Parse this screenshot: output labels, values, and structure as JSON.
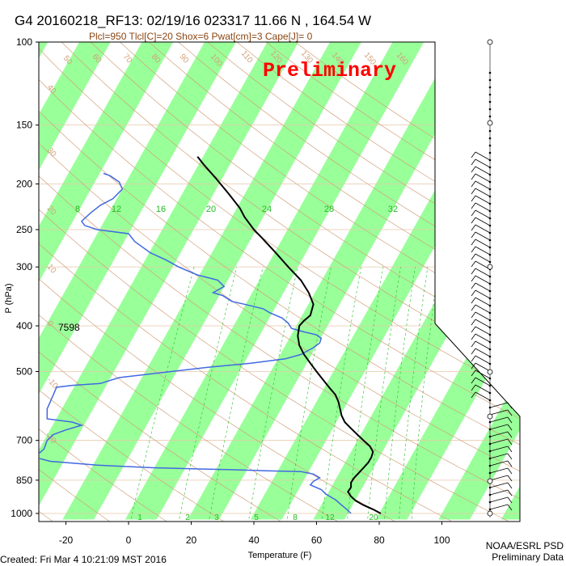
{
  "header": {
    "title": "G4 20160218_RF13: 02/19/16 023317  11.66 N , 164.54 W",
    "subtitle": "Plcl=950 Tlcl[C]=20 Shox=6 Pwat[cm]=3 Cape[J]= 0",
    "preliminary": "Preliminary"
  },
  "footer": {
    "created": "Created: Fri Mar  4 10:21:09 MST 2016",
    "credit_line1": "NOAA/ESRL PSD",
    "credit_line2": "Preliminary Data"
  },
  "colors": {
    "temperature": "#000000",
    "dewpoint": "#4169e1",
    "green_band": "#99ff99",
    "dry_adiabat": "#d2a07a",
    "mixing_ratio": "#22bb22",
    "isobar": "#e6c8a8"
  },
  "chart_data": {
    "type": "skew-t",
    "xlabel": "Temperature (F)",
    "ylabel": "P (hPa)",
    "xlim": [
      -28,
      122
    ],
    "ylim": [
      1030,
      100
    ],
    "x_ticks": [
      "-20",
      "0",
      "20",
      "40",
      "60",
      "80",
      "100"
    ],
    "y_ticks": [
      "100",
      "150",
      "200",
      "250",
      "300",
      "400",
      "500",
      "700",
      "850",
      "1000"
    ],
    "annotation": "7598",
    "mixing_ratio_labels_top": [
      "8",
      "12",
      "16",
      "20",
      "24",
      "28",
      "32"
    ],
    "mixing_ratio_labels_bottom": [
      "1",
      "2",
      "3",
      "5",
      "8",
      "12",
      "20"
    ],
    "dry_adiabat_labels": [
      "50",
      "60",
      "70",
      "80",
      "90",
      "100",
      "110",
      "120",
      "130",
      "140",
      "150",
      "160",
      "40",
      "30",
      "20",
      "10",
      "0",
      "-10",
      "-20"
    ],
    "theta_labels": [
      "30",
      "20",
      "10",
      "0",
      "10",
      "20"
    ],
    "series": [
      {
        "name": "temperature",
        "points": [
          [
            1000,
            80.5
          ],
          [
            980,
            78
          ],
          [
            960,
            75
          ],
          [
            940,
            72.5
          ],
          [
            920,
            71
          ],
          [
            900,
            70
          ],
          [
            880,
            71
          ],
          [
            860,
            71
          ],
          [
            840,
            72
          ],
          [
            820,
            73.5
          ],
          [
            800,
            75
          ],
          [
            780,
            76.5
          ],
          [
            760,
            77.5
          ],
          [
            740,
            78
          ],
          [
            720,
            77
          ],
          [
            700,
            75
          ],
          [
            680,
            73
          ],
          [
            660,
            71
          ],
          [
            640,
            69
          ],
          [
            620,
            68
          ],
          [
            600,
            67.5
          ],
          [
            580,
            67
          ],
          [
            560,
            66
          ],
          [
            540,
            64
          ],
          [
            520,
            62
          ],
          [
            500,
            60
          ],
          [
            480,
            58
          ],
          [
            460,
            56
          ],
          [
            440,
            54.5
          ],
          [
            420,
            54
          ],
          [
            400,
            54.5
          ],
          [
            390,
            56
          ],
          [
            380,
            58
          ],
          [
            360,
            59
          ],
          [
            340,
            57.5
          ],
          [
            320,
            55
          ],
          [
            300,
            51
          ],
          [
            280,
            47
          ],
          [
            260,
            42.5
          ],
          [
            250,
            40
          ],
          [
            235,
            37
          ],
          [
            225,
            35.5
          ],
          [
            210,
            32
          ],
          [
            195,
            28
          ],
          [
            182,
            24
          ],
          [
            175,
            22
          ]
        ]
      },
      {
        "name": "dewpoint",
        "points": [
          [
            1000,
            71
          ],
          [
            985,
            70
          ],
          [
            960,
            68
          ],
          [
            935,
            66
          ],
          [
            910,
            63
          ],
          [
            890,
            61.5
          ],
          [
            870,
            58
          ],
          [
            855,
            59
          ],
          [
            840,
            61
          ],
          [
            825,
            59
          ],
          [
            815,
            55
          ],
          [
            812,
            44
          ],
          [
            808,
            34
          ],
          [
            805,
            24
          ],
          [
            800,
            8
          ],
          [
            790,
            -10
          ],
          [
            775,
            -25
          ],
          [
            760,
            -30
          ],
          [
            750,
            -29
          ],
          [
            730,
            -27
          ],
          [
            700,
            -26
          ],
          [
            680,
            -24
          ],
          [
            665,
            -20
          ],
          [
            650,
            -15
          ],
          [
            640,
            -18
          ],
          [
            630,
            -26
          ],
          [
            600,
            -26
          ],
          [
            560,
            -24
          ],
          [
            540,
            -23
          ],
          [
            535,
            -18
          ],
          [
            530,
            -9
          ],
          [
            515,
            -3
          ],
          [
            505,
            8
          ],
          [
            490,
            25
          ],
          [
            480,
            39
          ],
          [
            470,
            50
          ],
          [
            460,
            55
          ],
          [
            445,
            59
          ],
          [
            435,
            61
          ],
          [
            425,
            61.5
          ],
          [
            418,
            60
          ],
          [
            412,
            56
          ],
          [
            405,
            52
          ],
          [
            395,
            51
          ],
          [
            385,
            49
          ],
          [
            375,
            45
          ],
          [
            368,
            43
          ],
          [
            360,
            37
          ],
          [
            355,
            33
          ],
          [
            345,
            30
          ],
          [
            340,
            27
          ],
          [
            330,
            30.5
          ],
          [
            320,
            28.5
          ],
          [
            312,
            22
          ],
          [
            300,
            16
          ],
          [
            290,
            12
          ],
          [
            280,
            7
          ],
          [
            265,
            2
          ],
          [
            255,
            0
          ],
          [
            250,
            -10
          ],
          [
            245,
            -14
          ],
          [
            240,
            -15
          ],
          [
            230,
            -12
          ],
          [
            222,
            -9
          ],
          [
            215,
            -5
          ],
          [
            205,
            -2
          ],
          [
            198,
            -3
          ],
          [
            192,
            -6
          ],
          [
            190,
            -8
          ]
        ]
      }
    ]
  }
}
